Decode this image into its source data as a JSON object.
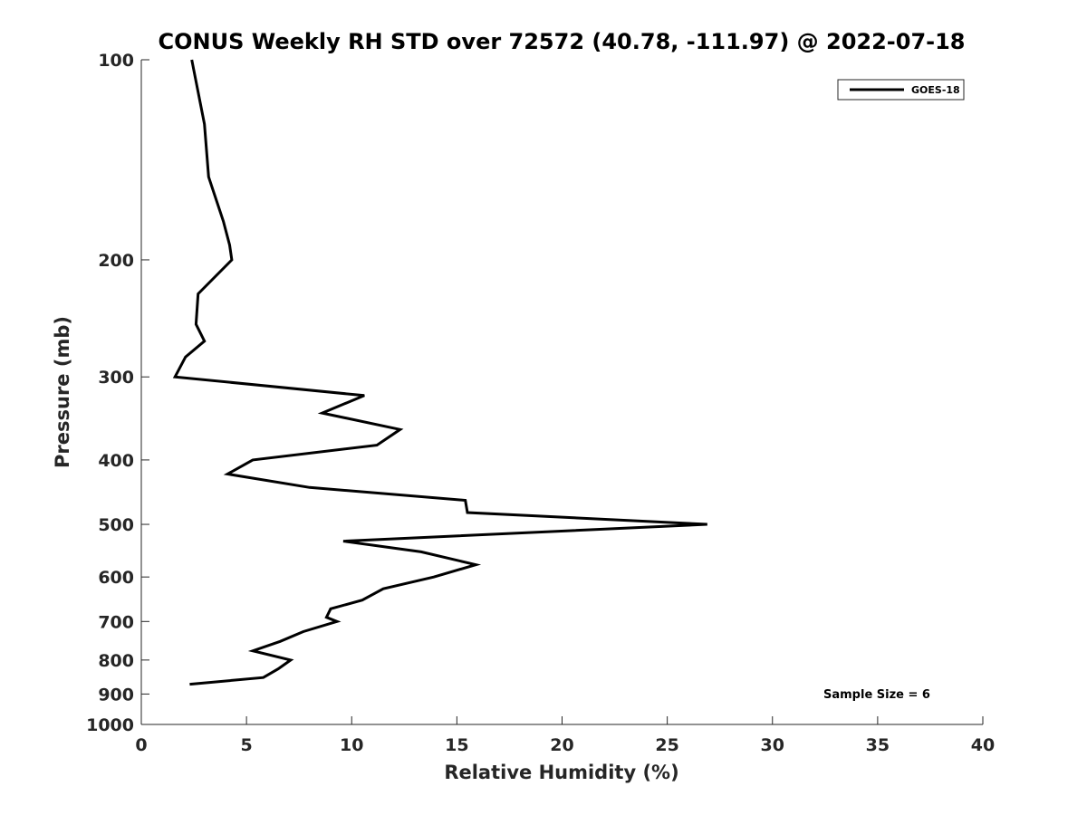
{
  "chart_data": {
    "type": "line",
    "title": "CONUS Weekly RH STD over 72572 (40.78, -111.97) @ 2022-07-18",
    "xlabel": "Relative Humidity (%)",
    "ylabel": "Pressure (mb)",
    "xlim": [
      0,
      40
    ],
    "ylim": [
      100,
      1000
    ],
    "y_scale": "log",
    "y_reversed": true,
    "x_ticks": [
      0,
      5,
      10,
      15,
      20,
      25,
      30,
      35,
      40
    ],
    "y_ticks": [
      100,
      200,
      300,
      400,
      500,
      600,
      700,
      800,
      900,
      1000
    ],
    "grid": false,
    "legend_position": "top-right",
    "annotation": "Sample Size = 6",
    "series": [
      {
        "name": "GOES-18",
        "color": "#000000",
        "points": [
          {
            "rh": 2.4,
            "p": 100
          },
          {
            "rh": 3.0,
            "p": 125
          },
          {
            "rh": 3.2,
            "p": 150
          },
          {
            "rh": 3.9,
            "p": 175
          },
          {
            "rh": 4.2,
            "p": 190
          },
          {
            "rh": 4.3,
            "p": 200
          },
          {
            "rh": 2.7,
            "p": 225
          },
          {
            "rh": 2.6,
            "p": 250
          },
          {
            "rh": 3.0,
            "p": 265
          },
          {
            "rh": 2.1,
            "p": 280
          },
          {
            "rh": 1.6,
            "p": 300
          },
          {
            "rh": 10.6,
            "p": 320
          },
          {
            "rh": 8.6,
            "p": 340
          },
          {
            "rh": 12.3,
            "p": 360
          },
          {
            "rh": 11.2,
            "p": 380
          },
          {
            "rh": 5.3,
            "p": 400
          },
          {
            "rh": 4.1,
            "p": 420
          },
          {
            "rh": 8.0,
            "p": 440
          },
          {
            "rh": 15.4,
            "p": 460
          },
          {
            "rh": 15.5,
            "p": 480
          },
          {
            "rh": 26.9,
            "p": 500
          },
          {
            "rh": 9.6,
            "p": 530
          },
          {
            "rh": 13.3,
            "p": 550
          },
          {
            "rh": 15.9,
            "p": 575
          },
          {
            "rh": 13.9,
            "p": 600
          },
          {
            "rh": 11.5,
            "p": 625
          },
          {
            "rh": 10.5,
            "p": 650
          },
          {
            "rh": 9.0,
            "p": 670
          },
          {
            "rh": 8.8,
            "p": 690
          },
          {
            "rh": 9.3,
            "p": 700
          },
          {
            "rh": 7.7,
            "p": 725
          },
          {
            "rh": 6.6,
            "p": 750
          },
          {
            "rh": 5.3,
            "p": 775
          },
          {
            "rh": 7.1,
            "p": 800
          },
          {
            "rh": 6.5,
            "p": 825
          },
          {
            "rh": 5.8,
            "p": 850
          },
          {
            "rh": 2.3,
            "p": 870
          }
        ]
      }
    ]
  }
}
